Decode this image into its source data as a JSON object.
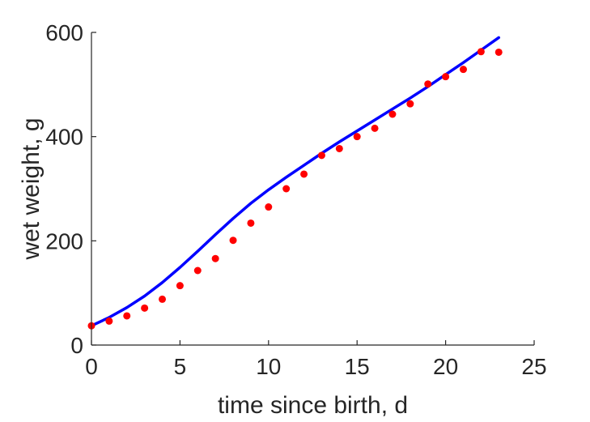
{
  "chart_data": {
    "type": "scatter",
    "title": "",
    "xlabel": "time since birth, d",
    "ylabel": "wet weight, g",
    "xlim": [
      0,
      25
    ],
    "ylim": [
      0,
      600
    ],
    "xticks": [
      0,
      5,
      10,
      15,
      20,
      25
    ],
    "yticks": [
      0,
      200,
      400,
      600
    ],
    "xtick_labels": [
      "0",
      "5",
      "10",
      "15",
      "20",
      "25"
    ],
    "ytick_labels": [
      "0",
      "200",
      "400",
      "600"
    ],
    "grid": false,
    "legend": "none",
    "series": [
      {
        "kind": "scatter",
        "color": "#ff0000",
        "x": [
          0,
          1,
          2,
          3,
          4,
          5,
          6,
          7,
          8,
          9,
          10,
          11,
          12,
          13,
          14,
          15,
          16,
          17,
          18,
          19,
          20,
          21,
          22,
          23
        ],
        "y": [
          37,
          46,
          56,
          71,
          88,
          114,
          143,
          166,
          201,
          234,
          265,
          300,
          328,
          364,
          377,
          400,
          416,
          443,
          463,
          501,
          515,
          529,
          563,
          562
        ]
      },
      {
        "kind": "line",
        "color": "#0000ff",
        "x": [
          0,
          1,
          2,
          3,
          4,
          5,
          6,
          7,
          8,
          9,
          10,
          11,
          12,
          13,
          14,
          15,
          16,
          17,
          18,
          19,
          20,
          21,
          22,
          23
        ],
        "y": [
          37,
          53,
          72,
          94,
          120,
          149,
          180,
          212,
          243,
          272,
          298,
          322,
          345,
          368,
          390,
          411,
          432,
          453,
          474,
          496,
          519,
          542,
          566,
          590
        ]
      }
    ]
  }
}
